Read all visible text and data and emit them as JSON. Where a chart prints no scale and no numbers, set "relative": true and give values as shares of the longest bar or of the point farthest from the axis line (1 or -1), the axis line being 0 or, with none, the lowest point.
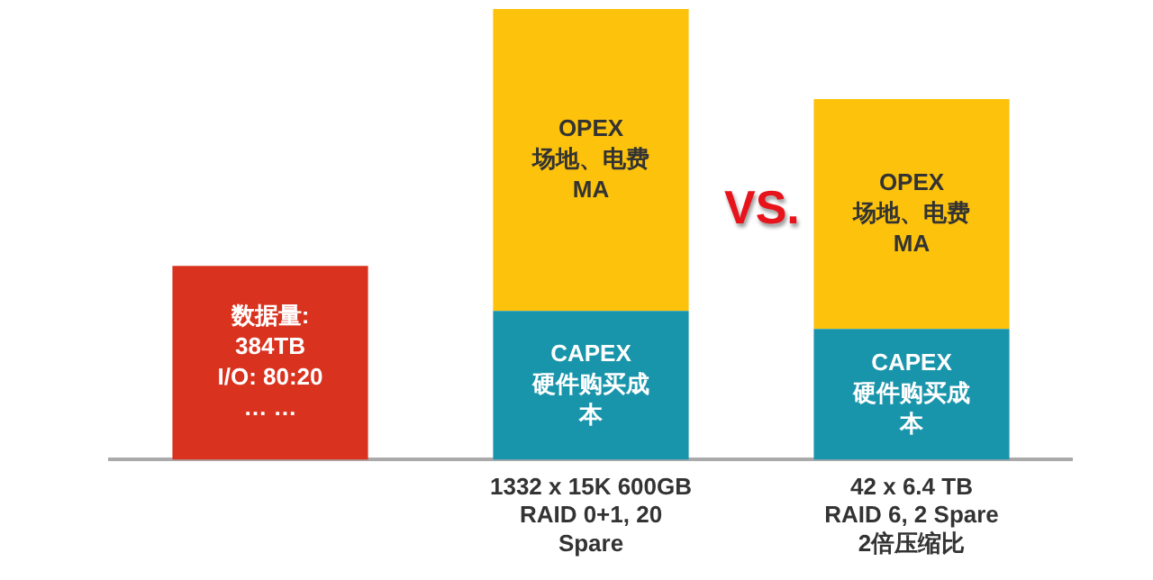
{
  "chart_data": {
    "type": "bar",
    "relative": true,
    "stacked": true,
    "grid": false,
    "legend": false,
    "categories": [
      null,
      "1332 x 15K 600GB\nRAID 0+1, 20\nSpare",
      "42 x 6.4 TB\nRAID 6, 2 Spare\n2倍压缩比"
    ],
    "series": [
      {
        "name": "数据量:\n384TB\nI/O: 80:20\n… …",
        "color": "#d9321f",
        "values": [
          0.43,
          null,
          null
        ]
      },
      {
        "name": "CAPEX\n硬件购买成本",
        "color": "#1995ab",
        "values": [
          null,
          0.33,
          0.29
        ]
      },
      {
        "name": "OPEX\n场地、电费\nMA",
        "color": "#fcc20c",
        "values": [
          null,
          0.67,
          0.51
        ]
      }
    ],
    "annotations": [
      "VS."
    ]
  }
}
